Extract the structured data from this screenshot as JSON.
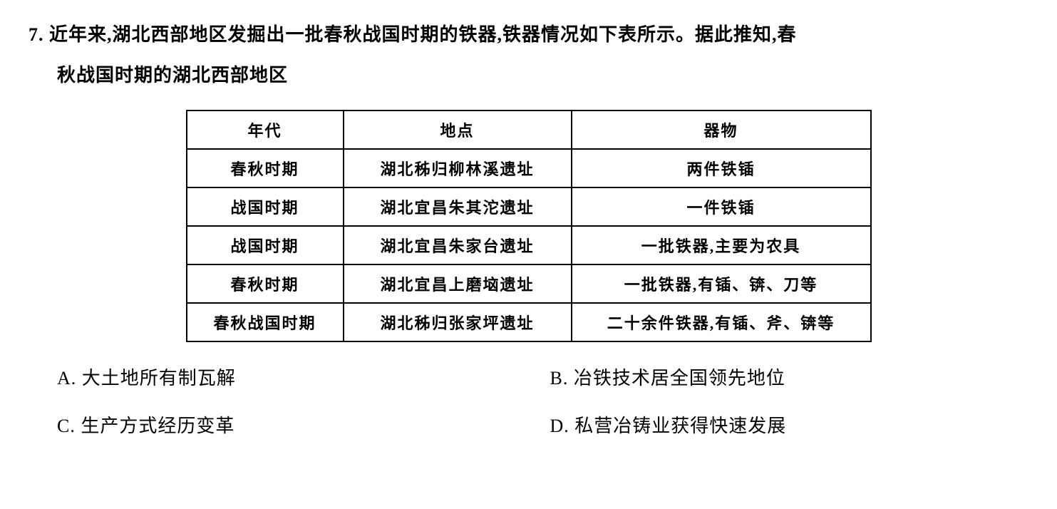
{
  "question": {
    "number": "7.",
    "line1": "7. 近年来,湖北西部地区发掘出一批春秋战国时期的铁器,铁器情况如下表所示。据此推知,春",
    "line2": "秋战国时期的湖北西部地区"
  },
  "table": {
    "headers": {
      "era": "年代",
      "location": "地点",
      "artifact": "器物"
    },
    "rows": [
      {
        "era": "春秋时期",
        "location": "湖北秭归柳林溪遗址",
        "artifact": "两件铁锸"
      },
      {
        "era": "战国时期",
        "location": "湖北宜昌朱其沱遗址",
        "artifact": "一件铁锸"
      },
      {
        "era": "战国时期",
        "location": "湖北宜昌朱家台遗址",
        "artifact": "一批铁器,主要为农具"
      },
      {
        "era": "春秋时期",
        "location": "湖北宜昌上磨垴遗址",
        "artifact": "一批铁器,有锸、锛、刀等"
      },
      {
        "era": "春秋战国时期",
        "location": "湖北秭归张家坪遗址",
        "artifact": "二十余件铁器,有锸、斧、锛等"
      }
    ]
  },
  "options": {
    "a": "A. 大土地所有制瓦解",
    "b": "B. 冶铁技术居全国领先地位",
    "c": "C. 生产方式经历变革",
    "d": "D. 私营冶铸业获得快速发展"
  }
}
